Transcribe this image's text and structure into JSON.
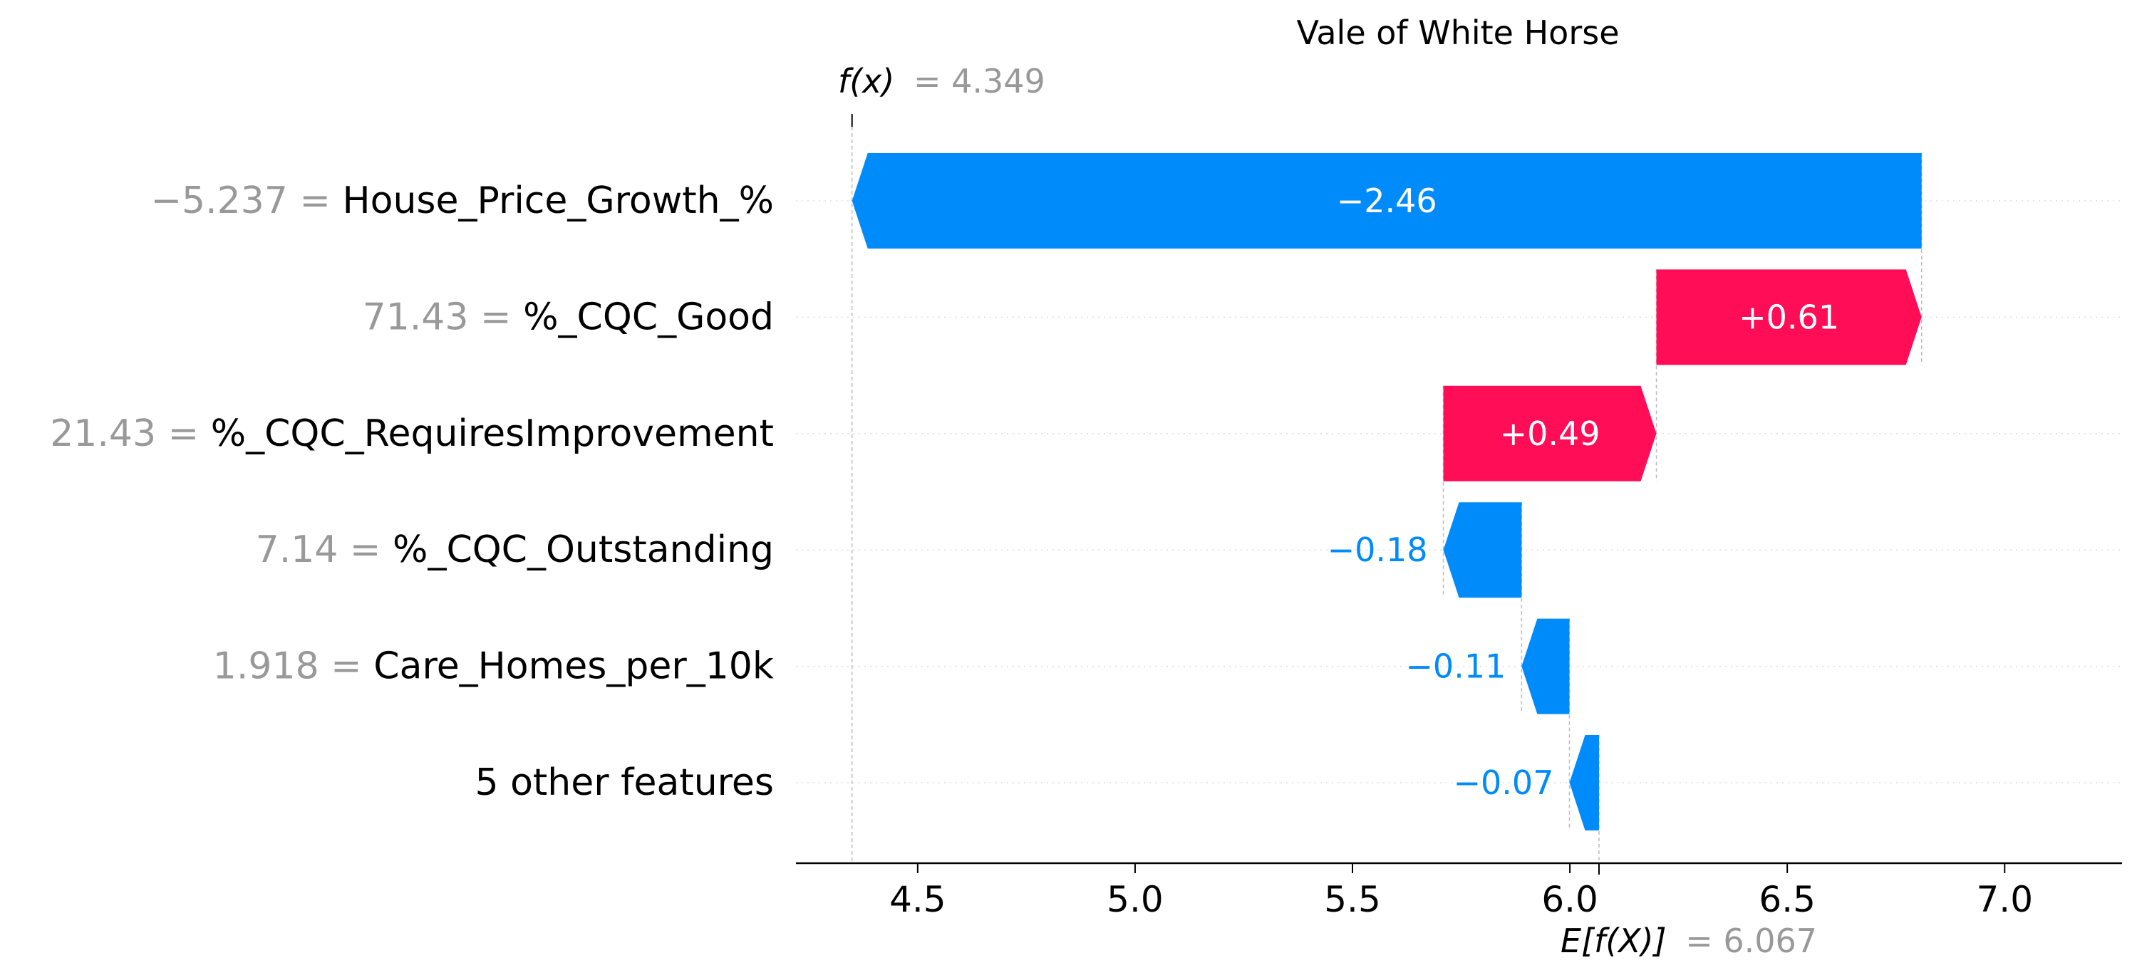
{
  "chart_data": {
    "type": "waterfall",
    "title": "Vale of White Horse",
    "fx": {
      "label_prefix": "f(x)",
      "value_text": "= 4.349",
      "value": 4.349
    },
    "expected": {
      "label_prefix": "E[f(X)]",
      "value_text": "= 6.067",
      "value": 6.067
    },
    "xlim": [
      4.22,
      7.27
    ],
    "ticks": [
      {
        "value": 4.5,
        "label": "4.5"
      },
      {
        "value": 5.0,
        "label": "5.0"
      },
      {
        "value": 5.5,
        "label": "5.5"
      },
      {
        "value": 6.0,
        "label": "6.0"
      },
      {
        "value": 6.5,
        "label": "6.5"
      },
      {
        "value": 7.0,
        "label": "7.0"
      }
    ],
    "features": [
      {
        "value_text": "−5.237 =",
        "name": "House_Price_Growth_%",
        "start": 6.809,
        "end": 4.349,
        "label": "−2.46",
        "sign": "neg"
      },
      {
        "value_text": "71.43 =",
        "name": "%_CQC_Good",
        "start": 6.199,
        "end": 6.809,
        "label": "+0.61",
        "sign": "pos"
      },
      {
        "value_text": "21.43 =",
        "name": "%_CQC_RequiresImprovement",
        "start": 5.709,
        "end": 6.199,
        "label": "+0.49",
        "sign": "pos"
      },
      {
        "value_text": "7.14 =",
        "name": "%_CQC_Outstanding",
        "start": 5.889,
        "end": 5.709,
        "label": "−0.18",
        "sign": "neg"
      },
      {
        "value_text": "1.918 =",
        "name": "Care_Homes_per_10k",
        "start": 5.999,
        "end": 5.889,
        "label": "−0.11",
        "sign": "neg"
      },
      {
        "value_text": "",
        "name": "5 other features",
        "start": 6.067,
        "end": 5.999,
        "label": "−0.07",
        "sign": "neg"
      }
    ],
    "colors": {
      "positive": "#ff0d57",
      "negative": "#008bfb",
      "text_on_bar": "#ffffff",
      "muted": "#999999"
    }
  }
}
